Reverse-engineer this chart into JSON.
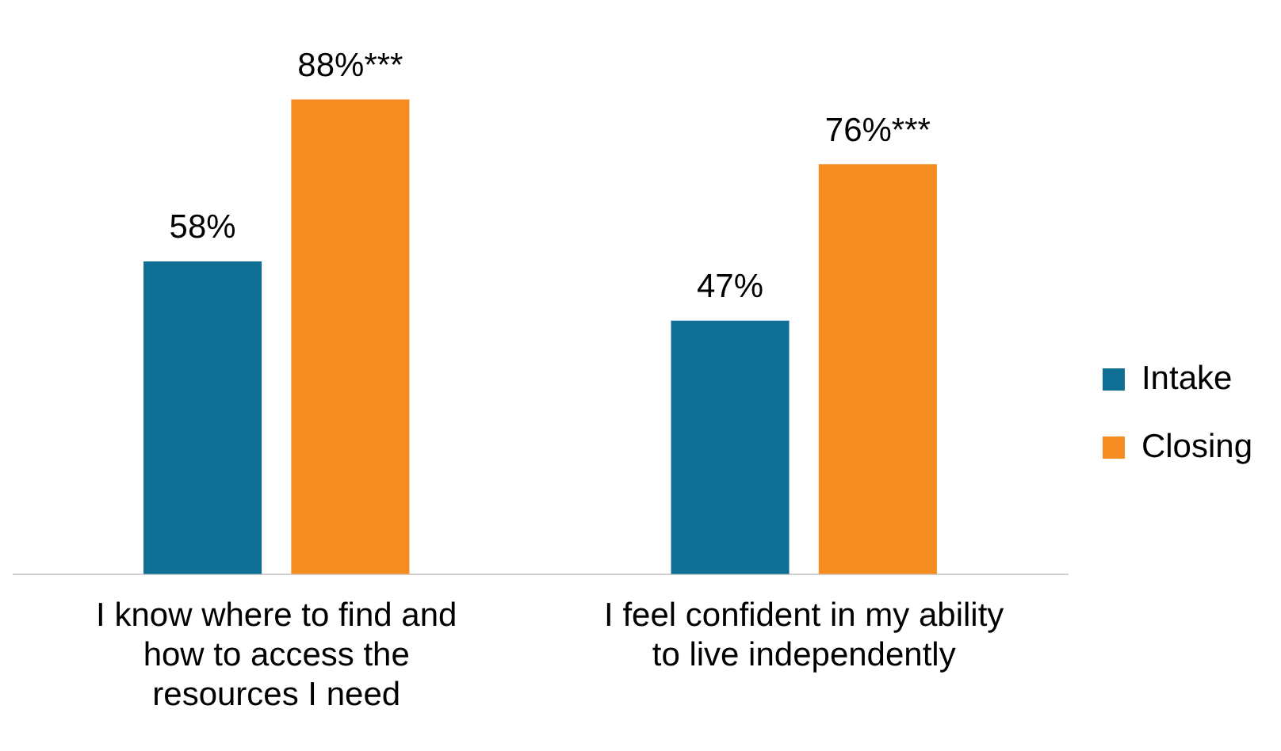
{
  "chart_data": {
    "type": "bar",
    "categories": [
      "I know where to find and how to access the resources I need",
      "I feel confident in my ability to live independently"
    ],
    "series": [
      {
        "name": "Intake",
        "color": "#0f6e93",
        "values": [
          58,
          47
        ],
        "value_labels": [
          "58%",
          "47%"
        ]
      },
      {
        "name": "Closing",
        "color": "#f48c22",
        "values": [
          88,
          76
        ],
        "value_labels": [
          "88%***",
          "76%***"
        ]
      }
    ],
    "legend": "right",
    "grid": false
  }
}
